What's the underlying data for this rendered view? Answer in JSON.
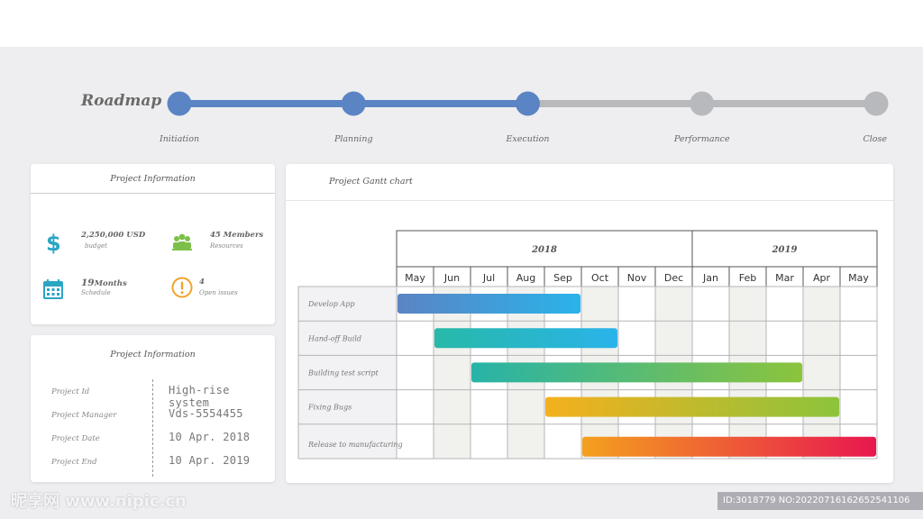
{
  "roadmap": {
    "title": "Roadmap",
    "stages": [
      {
        "label": "Initiation",
        "status": "done"
      },
      {
        "label": "Planning",
        "status": "done"
      },
      {
        "label": "Execution",
        "status": "done"
      },
      {
        "label": "Performance",
        "status": "pending"
      },
      {
        "label": "Close",
        "status": "pending"
      }
    ],
    "colors": {
      "done": "#5b84c4",
      "pending": "#b8b9bd"
    }
  },
  "info_card": {
    "title": "Project Information",
    "kpis": [
      {
        "value": "2,250,000 USD",
        "label": "budget",
        "icon": "dollar-icon",
        "color": "#2aa6c4"
      },
      {
        "value": "45 Members",
        "label": "Resources",
        "icon": "team-icon",
        "color": "#7cc04a"
      },
      {
        "value_num": "19",
        "value_unit": "Months",
        "label": "Schedule",
        "icon": "calendar-icon",
        "color": "#2aa6c4"
      },
      {
        "value": "4",
        "label": "Open issues",
        "icon": "alert-icon",
        "color": "#f0a32a"
      }
    ]
  },
  "details_card": {
    "title": "Project Information",
    "rows": [
      {
        "key": "Project Id",
        "value": "High-rise system"
      },
      {
        "key": "Project Manager",
        "value": "Vds-5554455"
      },
      {
        "key": "Project Date",
        "value": "10 Apr. 2018"
      },
      {
        "key": "Project End",
        "value": "10 Apr. 2019"
      }
    ]
  },
  "gantt_card": {
    "title": "Project Gantt chart"
  },
  "chart_data": {
    "type": "gantt",
    "years": [
      {
        "label": "2018",
        "months": 8
      },
      {
        "label": "2019",
        "months": 5
      }
    ],
    "months": [
      "May",
      "Jun",
      "Jul",
      "Aug",
      "Sep",
      "Oct",
      "Nov",
      "Dec",
      "Jan",
      "Feb",
      "Mar",
      "Apr",
      "May"
    ],
    "shaded_months": [
      1,
      3,
      5,
      7,
      9,
      11
    ],
    "tasks": [
      {
        "name": "Develop App",
        "start": "2018-05",
        "end": "2018-09",
        "colors": [
          "#5b84c4",
          "#2ab3ea"
        ]
      },
      {
        "name": "Hand-off Build",
        "start": "2018-06",
        "end": "2018-10",
        "colors": [
          "#27b9a8",
          "#2ab3ea"
        ]
      },
      {
        "name": "Building test script",
        "start": "2018-07",
        "end": "2019-03",
        "colors": [
          "#27b3a8",
          "#8cc43c"
        ]
      },
      {
        "name": "Fixing Bugs",
        "start": "2018-09",
        "end": "2019-04",
        "colors": [
          "#f4b01e",
          "#8cc43c"
        ]
      },
      {
        "name": "Release to manufacturing",
        "start": "2018-10",
        "end": "2019-05",
        "colors": [
          "#f4a01e",
          "#e8174f"
        ]
      }
    ]
  },
  "watermark": {
    "left": "昵享网 www.nipic.cn",
    "right": "ID:3018779 NO:20220716162652541106"
  }
}
